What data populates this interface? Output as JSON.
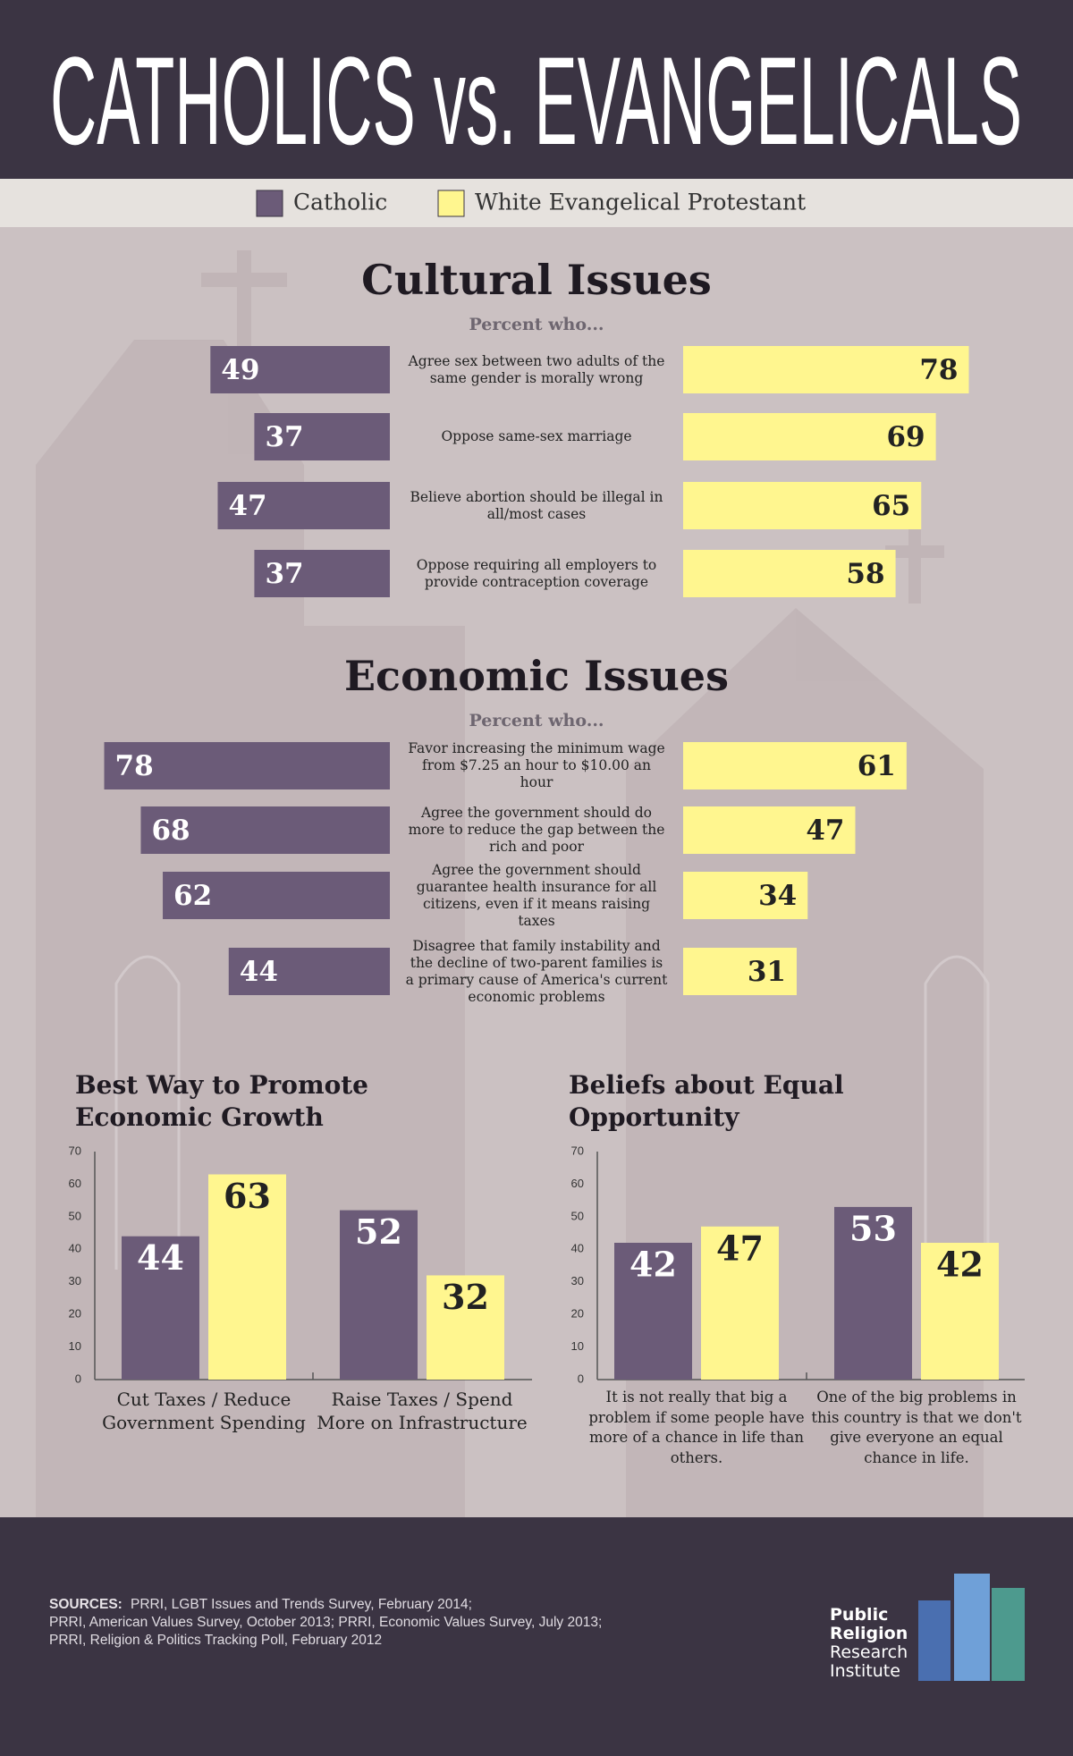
{
  "title": "CATHOLICS vs. EVANGELICALS",
  "chart_data": [
    {
      "type": "butterfly",
      "title": "Cultural Issues",
      "subtitle": "Percent who...",
      "categories": [
        "Agree sex between two adults of the same gender is morally wrong",
        "Oppose same-sex marriage",
        "Believe abortion should be illegal in all/most cases",
        "Oppose requiring all employers to provide contraception coverage"
      ],
      "series": [
        {
          "name": "Catholic",
          "color": "#6b5b78",
          "values": [
            49,
            37,
            47,
            37
          ]
        },
        {
          "name": "White Evangelical Protestant",
          "color": "#fff68f",
          "values": [
            78,
            69,
            65,
            58
          ]
        }
      ]
    },
    {
      "type": "butterfly",
      "title": "Economic Issues",
      "subtitle": "Percent who...",
      "categories": [
        "Favor increasing the minimum wage from $7.25 an hour to $10.00 an hour",
        "Agree the government should do more to reduce the gap between the rich and poor",
        "Agree the government should guarantee health insurance for all citizens, even if it means raising taxes",
        "Disagree that family instability and the decline of two-parent families is a primary cause of America's current economic problems"
      ],
      "series": [
        {
          "color": "#6b5b78",
          "values": [
            78,
            68,
            62,
            44
          ]
        },
        {
          "color": "#fff68f",
          "values": [
            61,
            47,
            34,
            31
          ]
        }
      ]
    },
    {
      "type": "bar",
      "title": "Best Way to Promote Economic Growth",
      "categories": [
        "Cut Taxes / Reduce Government Spending",
        "Raise Taxes / Spend More on Infrastructure"
      ],
      "series": [
        {
          "color": "#6b5b78",
          "values": [
            44,
            52
          ]
        },
        {
          "color": "#fff68f",
          "values": [
            63,
            32
          ]
        }
      ],
      "ylim": [
        0,
        70
      ],
      "yticks": [
        0,
        10,
        20,
        30,
        40,
        50,
        60,
        70
      ]
    },
    {
      "type": "bar",
      "title": "Beliefs about Equal Opportunity",
      "categories": [
        "It is not really that big a problem if some people have more of a chance in life than others.",
        "One of the big problems in this country is that we don't give everyone an equal chance in life."
      ],
      "series": [
        {
          "color": "#6b5b78",
          "values": [
            42,
            53
          ]
        },
        {
          "color": "#fff68f",
          "values": [
            47,
            42
          ]
        }
      ],
      "ylim": [
        0,
        70
      ],
      "yticks": [
        0,
        10,
        20,
        30,
        40,
        50,
        60,
        70
      ]
    }
  ],
  "sources": {
    "label": "SOURCES:",
    "lines": [
      "PRRI, LGBT Issues and Trends Survey, February 2014;",
      "PRRI, American Values Survey, October 2013; PRRI, Economic Values Survey, July 2013;",
      "PRRI, Religion & Politics Tracking Poll, February 2012"
    ]
  },
  "logo": [
    "Public",
    "Religion",
    "Research",
    "Institute"
  ]
}
